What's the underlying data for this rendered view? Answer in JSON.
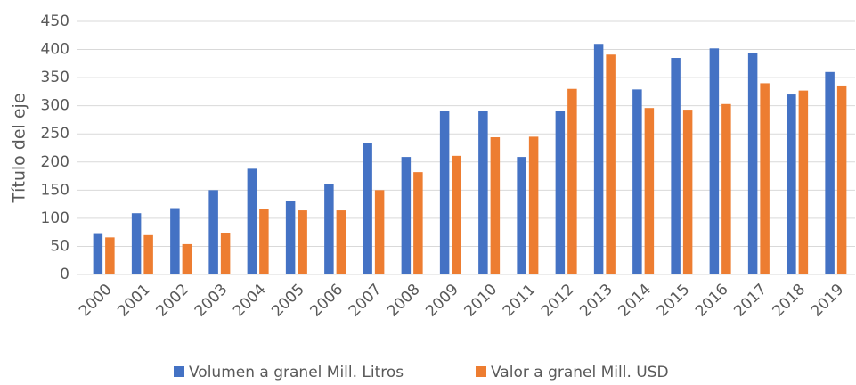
{
  "chart_data": {
    "type": "bar",
    "y_axis_label": "Título del eje",
    "categories": [
      "2000",
      "2001",
      "2002",
      "2003",
      "2004",
      "2005",
      "2006",
      "2007",
      "2008",
      "2009",
      "2010",
      "2011",
      "2012",
      "2013",
      "2014",
      "2015",
      "2016",
      "2017",
      "2018",
      "2019"
    ],
    "series": [
      {
        "name": "Volumen a granel Mill. Litros",
        "color": "#4472c4",
        "values": [
          72,
          109,
          118,
          150,
          188,
          131,
          161,
          233,
          209,
          290,
          291,
          209,
          290,
          410,
          329,
          385,
          402,
          394,
          320,
          360
        ]
      },
      {
        "name": "Valor a granel Mill. USD",
        "color": "#ed7d31",
        "values": [
          66,
          70,
          54,
          74,
          116,
          114,
          114,
          150,
          182,
          211,
          244,
          245,
          330,
          391,
          296,
          293,
          303,
          340,
          327,
          336
        ]
      }
    ],
    "ylim": [
      0,
      450
    ],
    "yticks": [
      0,
      50,
      100,
      150,
      200,
      250,
      300,
      350,
      400,
      450
    ],
    "grid": true,
    "legend": "bottom"
  }
}
